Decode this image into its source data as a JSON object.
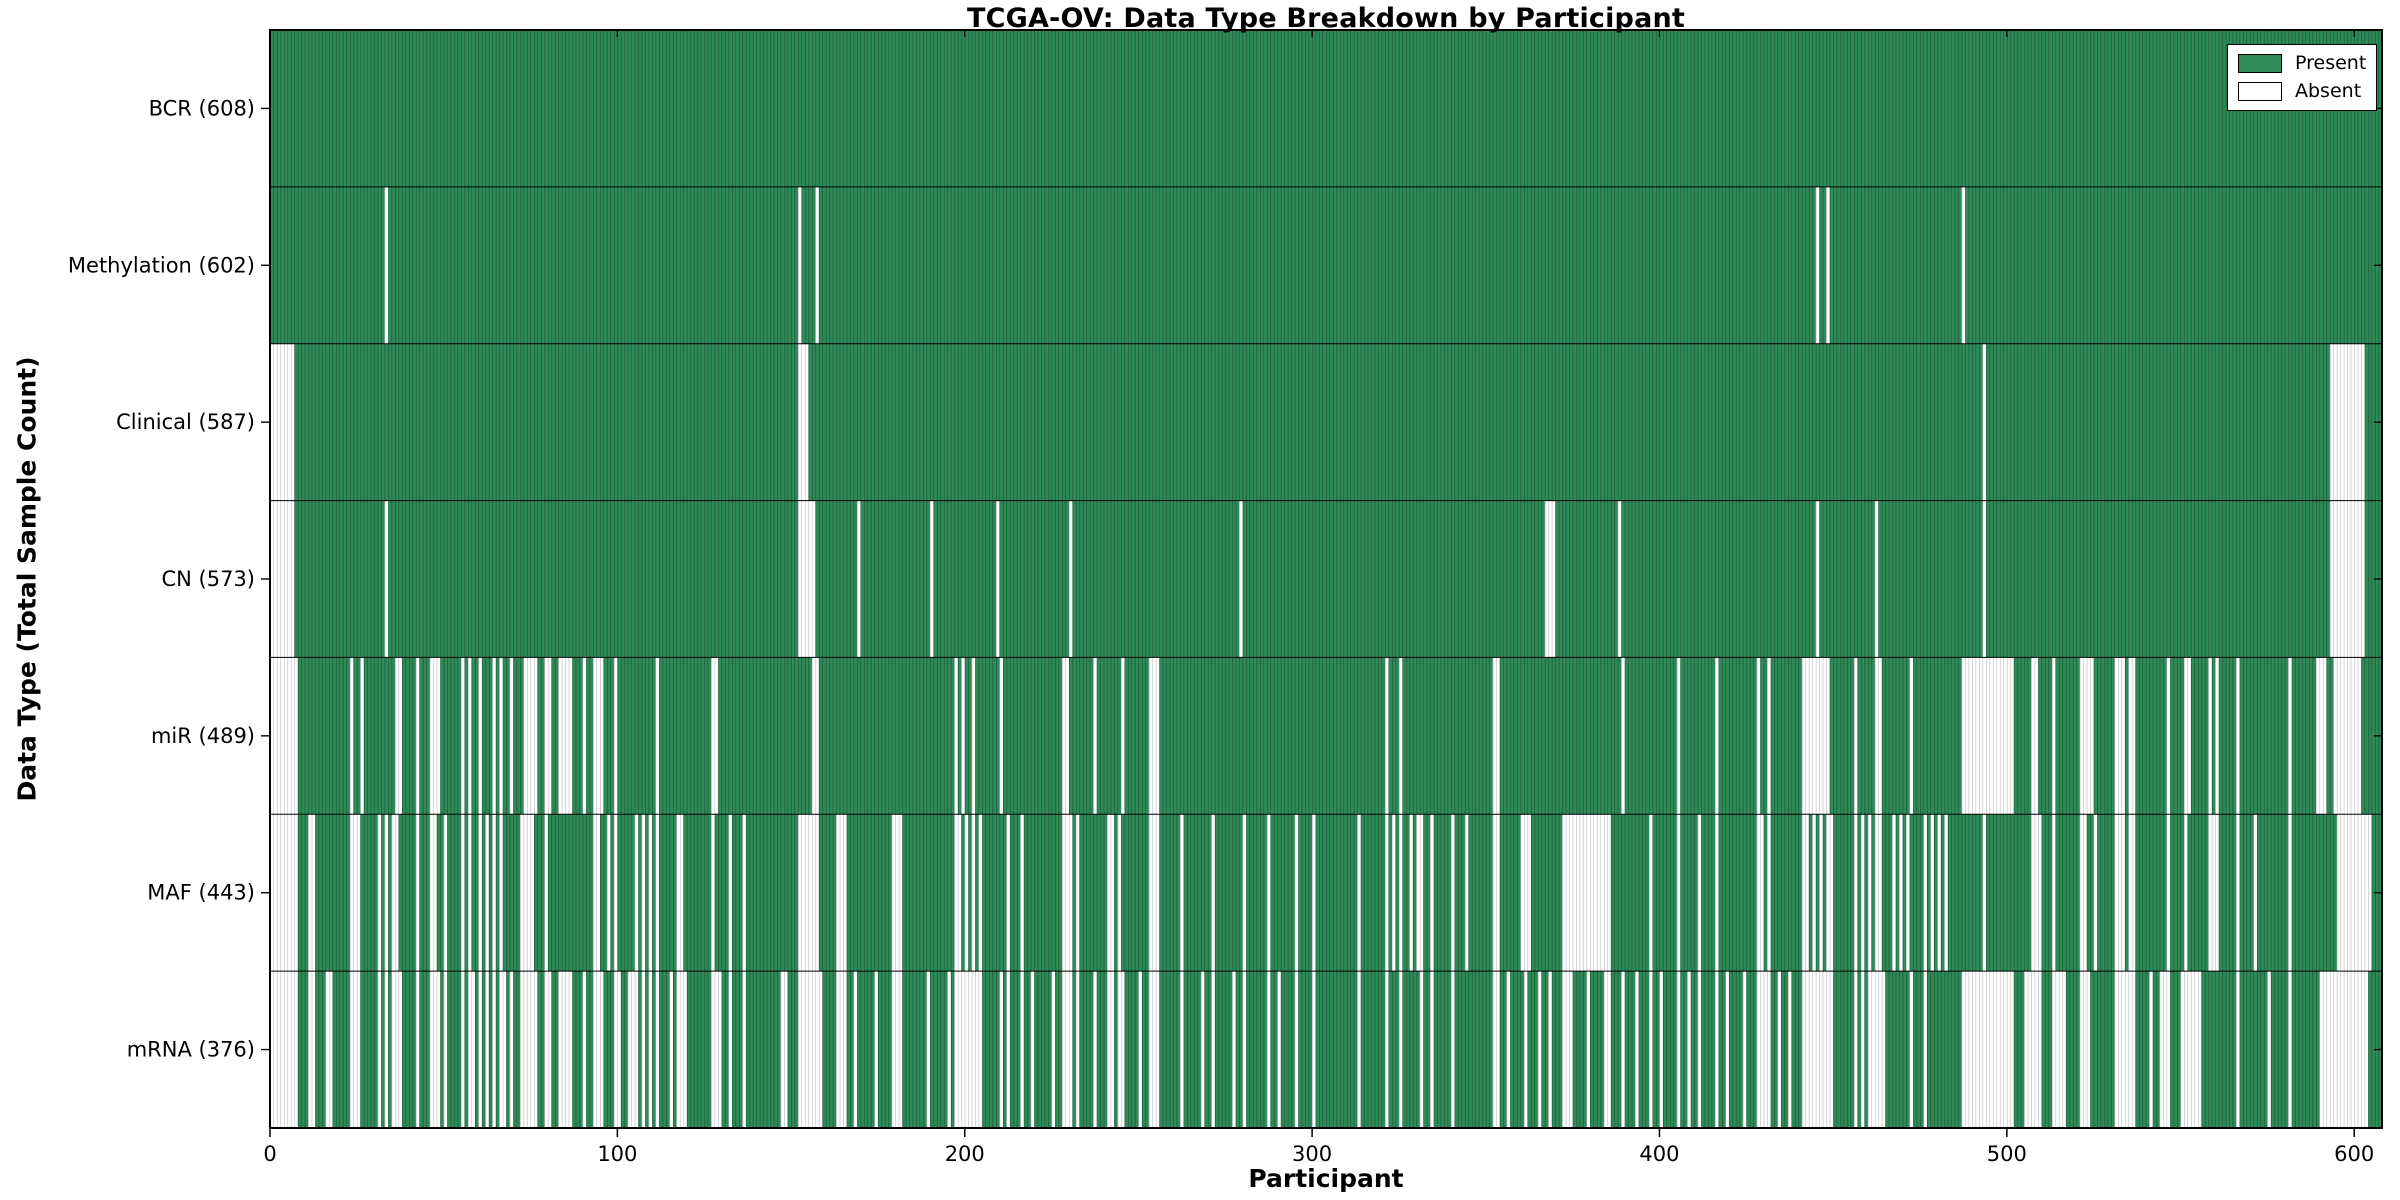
{
  "title": "TCGA-OV: Data Type Breakdown by Participant",
  "xlabel": "Participant",
  "ylabel": "Data Type (Total Sample Count)",
  "legend": [
    {
      "label": "Present",
      "color": "#2e8b57"
    },
    {
      "label": "Absent",
      "color": "#ffffff"
    }
  ],
  "chart_data": {
    "type": "heatmap",
    "title": "TCGA-OV: Data Type Breakdown by Participant",
    "xlabel": "Participant",
    "ylabel": "Data Type (Total Sample Count)",
    "n_participants": 608,
    "x_ticks": [
      0,
      100,
      200,
      300,
      400,
      500,
      600
    ],
    "xlim": [
      0,
      608
    ],
    "grid": false,
    "legend_position": "upper right",
    "present_color": "#2e8b57",
    "absent_color": "#ffffff",
    "rows": [
      {
        "data_type": "BCR",
        "label": "BCR (608)",
        "present_count": 608,
        "absent_count": 0,
        "absent_ranges": []
      },
      {
        "data_type": "Methylation",
        "label": "Methylation (602)",
        "present_count": 602,
        "absent_count": 6,
        "absent_ranges": [
          33,
          152,
          157,
          445,
          448,
          487
        ]
      },
      {
        "data_type": "Clinical",
        "label": "Clinical (587)",
        "present_count": 587,
        "absent_count": 21,
        "absent_ranges": [
          [
            0,
            6
          ],
          [
            152,
            154
          ],
          493,
          [
            593,
            602
          ]
        ]
      },
      {
        "data_type": "CN",
        "label": "CN (573)",
        "present_count": 573,
        "absent_count": 35,
        "absent_ranges": [
          [
            0,
            6
          ],
          33,
          [
            152,
            156
          ],
          169,
          190,
          209,
          230,
          279,
          [
            367,
            369
          ],
          388,
          445,
          462,
          493,
          [
            593,
            602
          ]
        ]
      },
      {
        "data_type": "miR",
        "label": "miR (489)",
        "present_count": 489,
        "absent_count": 119,
        "absent_ranges": [
          [
            0,
            7
          ],
          23,
          26,
          [
            36,
            37
          ],
          42,
          [
            46,
            48
          ],
          55,
          57,
          60,
          64,
          66,
          69,
          [
            73,
            76
          ],
          [
            79,
            80
          ],
          [
            83,
            86
          ],
          90,
          [
            93,
            95
          ],
          99,
          111,
          [
            127,
            128
          ],
          [
            156,
            157
          ],
          197,
          199,
          202,
          210,
          [
            228,
            229
          ],
          237,
          245,
          [
            253,
            255
          ],
          321,
          325,
          [
            352,
            353
          ],
          389,
          405,
          416,
          428,
          431,
          [
            441,
            448
          ],
          456,
          [
            462,
            463
          ],
          472,
          [
            487,
            501
          ],
          [
            507,
            508
          ],
          513,
          [
            521,
            524
          ],
          [
            531,
            533
          ],
          [
            535,
            536
          ],
          546,
          [
            551,
            552
          ],
          558,
          560,
          566,
          581,
          [
            589,
            591
          ],
          [
            594,
            601
          ]
        ]
      },
      {
        "data_type": "MAF",
        "label": "MAF (443)",
        "present_count": 443,
        "absent_count": 165,
        "absent_ranges": [
          [
            0,
            7
          ],
          [
            11,
            12
          ],
          [
            23,
            25
          ],
          31,
          33,
          [
            35,
            36
          ],
          42,
          [
            46,
            47
          ],
          50,
          55,
          57,
          60,
          62,
          64,
          66,
          [
            72,
            75
          ],
          79,
          [
            93,
            94
          ],
          97,
          99,
          105,
          107,
          109,
          111,
          [
            117,
            118
          ],
          127,
          132,
          136,
          [
            152,
            157
          ],
          [
            163,
            165
          ],
          [
            179,
            181
          ],
          [
            197,
            198
          ],
          200,
          202,
          204,
          212,
          216,
          [
            228,
            230
          ],
          232,
          [
            241,
            242
          ],
          244,
          [
            253,
            255
          ],
          262,
          271,
          280,
          287,
          295,
          300,
          313,
          321,
          323,
          325,
          328,
          [
            330,
            331
          ],
          334,
          340,
          344,
          [
            352,
            353
          ],
          [
            360,
            362
          ],
          [
            372,
            385
          ],
          397,
          405,
          411,
          416,
          [
            428,
            429
          ],
          431,
          [
            441,
            442
          ],
          444,
          446,
          [
            448,
            449
          ],
          456,
          458,
          460,
          [
            462,
            463
          ],
          467,
          469,
          471,
          476,
          478,
          480,
          482,
          493,
          [
            507,
            509
          ],
          513,
          [
            521,
            522
          ],
          525,
          [
            531,
            533
          ],
          [
            535,
            536
          ],
          546,
          551,
          [
            558,
            560
          ],
          566,
          571,
          581,
          [
            595,
            604
          ]
        ]
      },
      {
        "data_type": "mRNA",
        "label": "mRNA (376)",
        "present_count": 376,
        "absent_count": 232,
        "absent_ranges": [
          [
            0,
            7
          ],
          [
            11,
            12
          ],
          [
            16,
            17
          ],
          [
            23,
            25
          ],
          31,
          33,
          [
            35,
            37
          ],
          42,
          [
            46,
            48
          ],
          50,
          55,
          [
            57,
            58
          ],
          60,
          62,
          64,
          [
            66,
            67
          ],
          69,
          [
            72,
            76
          ],
          [
            79,
            80
          ],
          [
            83,
            86
          ],
          90,
          [
            93,
            95
          ],
          [
            99,
            100
          ],
          [
            103,
            105
          ],
          107,
          109,
          111,
          115,
          [
            117,
            119
          ],
          [
            127,
            129
          ],
          132,
          136,
          [
            147,
            148
          ],
          [
            152,
            158
          ],
          [
            163,
            165
          ],
          168,
          174,
          [
            179,
            181
          ],
          189,
          195,
          [
            197,
            204
          ],
          210,
          212,
          216,
          219,
          225,
          [
            228,
            230
          ],
          232,
          237,
          [
            241,
            242
          ],
          [
            244,
            245
          ],
          250,
          [
            253,
            255
          ],
          262,
          268,
          271,
          277,
          280,
          287,
          290,
          295,
          300,
          313,
          321,
          325,
          331,
          334,
          340,
          [
            352,
            353
          ],
          356,
          361,
          365,
          368,
          [
            372,
            374
          ],
          379,
          [
            384,
            385
          ],
          389,
          393,
          397,
          400,
          405,
          408,
          411,
          416,
          419,
          424,
          [
            428,
            431
          ],
          434,
          437,
          [
            441,
            449
          ],
          456,
          458,
          [
            460,
            464
          ],
          472,
          476,
          [
            487,
            501
          ],
          [
            505,
            509
          ],
          [
            513,
            516
          ],
          [
            521,
            523
          ],
          [
            531,
            536
          ],
          541,
          [
            544,
            546
          ],
          [
            550,
            555
          ],
          566,
          575,
          581,
          [
            590,
            603
          ]
        ]
      }
    ]
  }
}
